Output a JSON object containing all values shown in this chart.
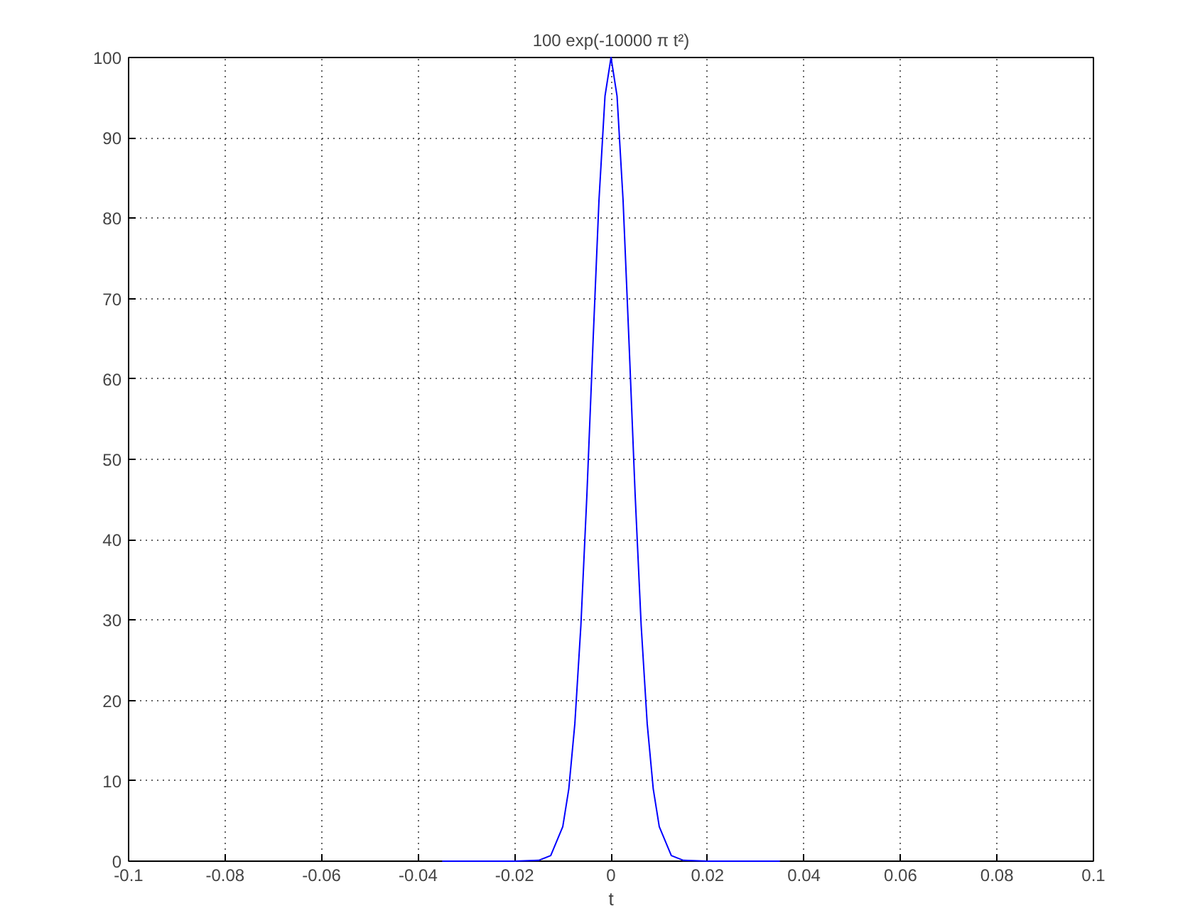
{
  "chart_data": {
    "type": "line",
    "title": "100 exp(-10000 π t²)",
    "xlabel": "t",
    "x": [
      -0.035,
      -0.03,
      -0.025,
      -0.02,
      -0.015,
      -0.0125,
      -0.01,
      -0.00875,
      -0.0075,
      -0.00625,
      -0.005,
      -0.00375,
      -0.0025,
      -0.00125,
      0,
      0.00125,
      0.0025,
      0.00375,
      0.005,
      0.00625,
      0.0075,
      0.00875,
      0.01,
      0.0125,
      0.015,
      0.02,
      0.025,
      0.03,
      0.035
    ],
    "series": [
      {
        "color": "#0000ff",
        "values": [
          0,
          0,
          0,
          0,
          0.1,
          0.7,
          4.3,
          9.0,
          17.1,
          29.3,
          45.6,
          64.3,
          82.2,
          95.2,
          100,
          95.2,
          82.2,
          64.3,
          45.6,
          29.3,
          17.1,
          9.0,
          4.3,
          0.7,
          0.1,
          0,
          0,
          0,
          0
        ]
      }
    ],
    "xlim": [
      -0.1,
      0.1
    ],
    "ylim": [
      0,
      100
    ],
    "xticks": [
      -0.1,
      -0.08,
      -0.06,
      -0.04,
      -0.02,
      0,
      0.02,
      0.04,
      0.06,
      0.08,
      0.1
    ],
    "yticks": [
      0,
      10,
      20,
      30,
      40,
      50,
      60,
      70,
      80,
      90,
      100
    ],
    "grid": true,
    "line_style": "solid"
  }
}
